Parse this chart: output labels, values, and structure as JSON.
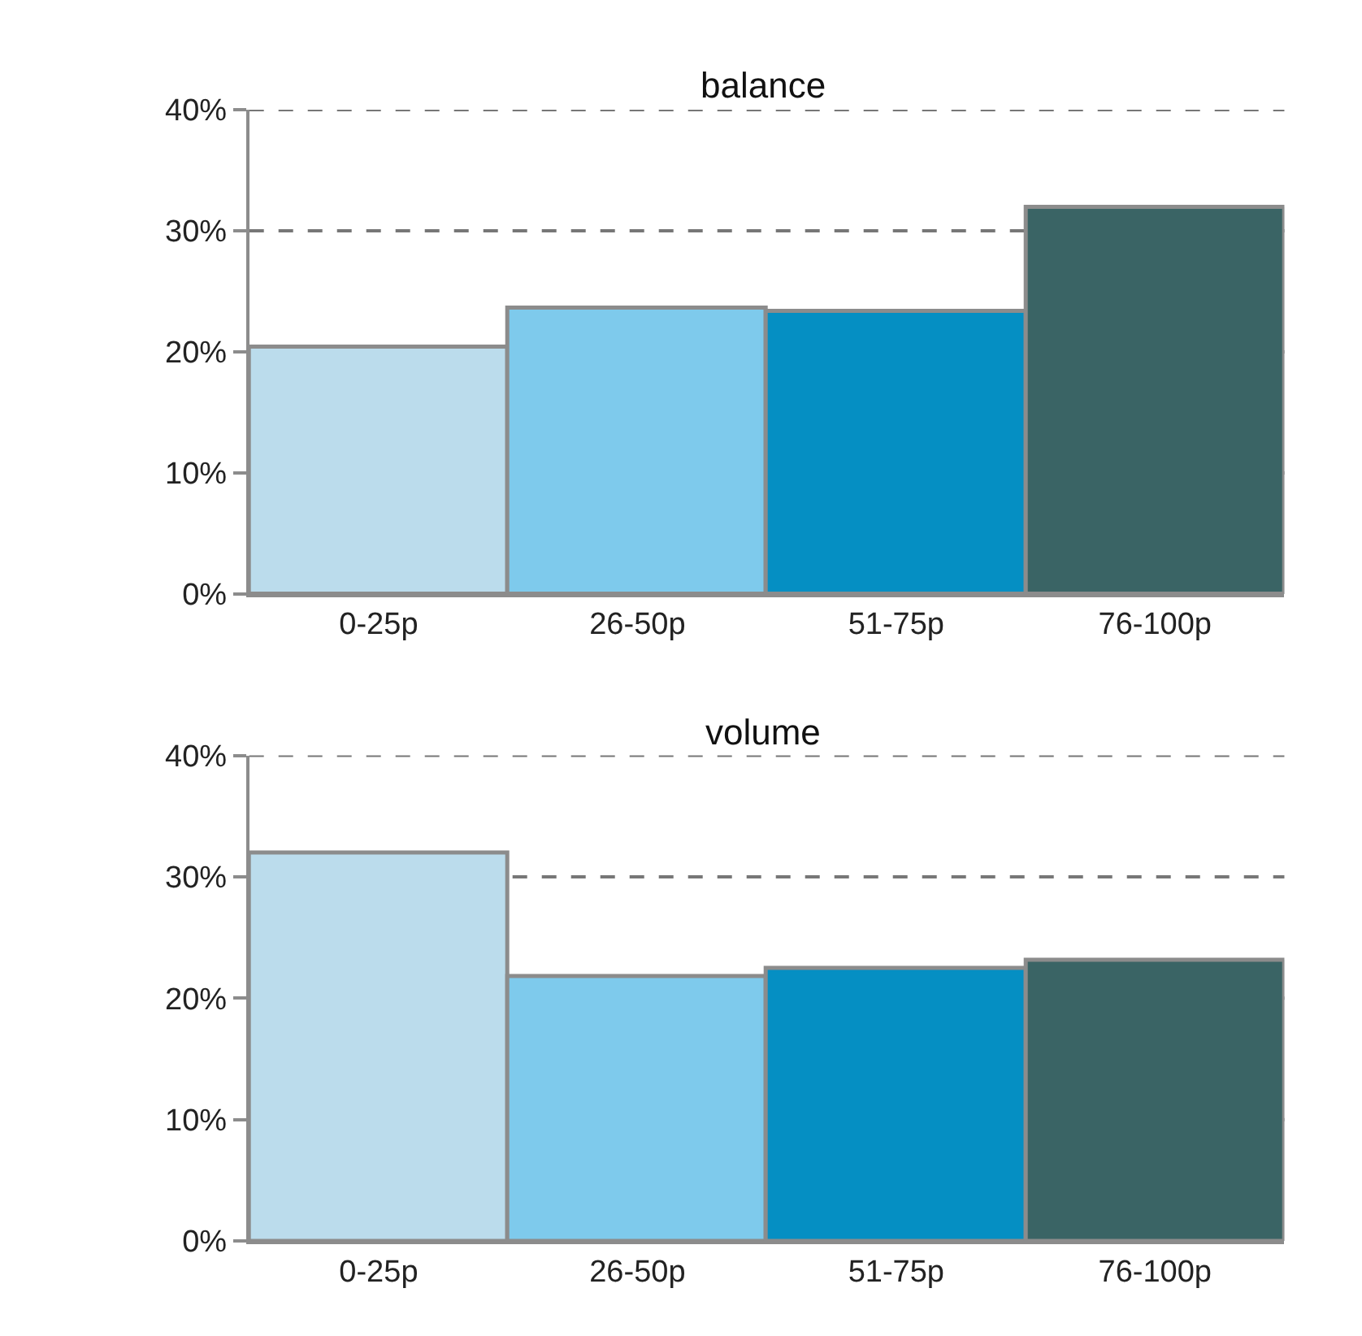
{
  "chart_data": [
    {
      "type": "bar",
      "title": "balance",
      "categories": [
        "0-25p",
        "26-50p",
        "51-75p",
        "76-100p"
      ],
      "values": [
        20.4,
        23.6,
        23.4,
        32.0
      ],
      "colors": [
        "#bbdcec",
        "#7ecaec",
        "#058fc3",
        "#3a6465"
      ],
      "ylim": [
        0,
        40
      ],
      "yticks": [
        {
          "value": 0,
          "label": "0%"
        },
        {
          "value": 10,
          "label": "10%"
        },
        {
          "value": 20,
          "label": "20%"
        },
        {
          "value": 30,
          "label": "30%"
        },
        {
          "value": 40,
          "label": "40%"
        }
      ],
      "grid": "y"
    },
    {
      "type": "bar",
      "title": "volume",
      "categories": [
        "0-25p",
        "26-50p",
        "51-75p",
        "76-100p"
      ],
      "values": [
        32.0,
        21.8,
        22.5,
        23.1
      ],
      "colors": [
        "#bbdcec",
        "#7ecaec",
        "#058fc3",
        "#3a6465"
      ],
      "ylim": [
        0,
        40
      ],
      "yticks": [
        {
          "value": 0,
          "label": "0%"
        },
        {
          "value": 10,
          "label": "10%"
        },
        {
          "value": 20,
          "label": "20%"
        },
        {
          "value": 30,
          "label": "30%"
        },
        {
          "value": 40,
          "label": "40%"
        }
      ],
      "grid": "y"
    }
  ]
}
